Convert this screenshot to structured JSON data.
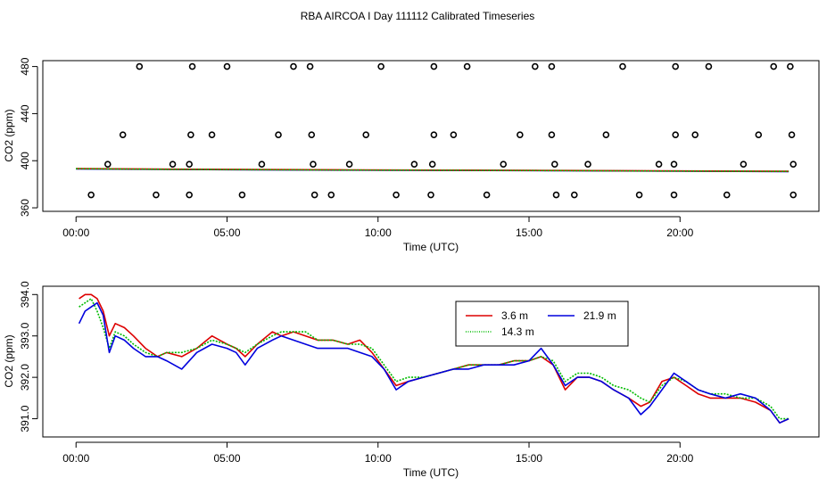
{
  "page_title": "RBA AIRCOA I  Day 111112  Calibrated Timeseries",
  "colors": {
    "red": "#dd0000",
    "green": "#00bb00",
    "blue": "#0000dd",
    "axis": "#000000"
  },
  "chart_data": [
    {
      "type": "scatter",
      "name": "top-panel",
      "xlabel": "Time (UTC)",
      "ylabel": "CO2 (ppm)",
      "xlim": [
        -1.1,
        24.6
      ],
      "ylim": [
        357,
        485
      ],
      "x_ticks": [
        {
          "v": 0,
          "label": "00:00"
        },
        {
          "v": 5,
          "label": "05:00"
        },
        {
          "v": 10,
          "label": "10:00"
        },
        {
          "v": 15,
          "label": "15:00"
        },
        {
          "v": 20,
          "label": "20:00"
        }
      ],
      "y_ticks": [
        {
          "v": 360,
          "label": "360"
        },
        {
          "v": 400,
          "label": "400"
        },
        {
          "v": 440,
          "label": "440"
        },
        {
          "v": 480,
          "label": "480"
        }
      ],
      "points_480": [
        2.1,
        3.85,
        5.0,
        7.2,
        7.75,
        10.1,
        11.85,
        12.95,
        15.2,
        15.75,
        18.1,
        19.85,
        20.95,
        23.1,
        23.65
      ],
      "points_422": [
        1.55,
        3.8,
        4.5,
        6.7,
        7.8,
        9.6,
        11.85,
        12.5,
        14.7,
        15.75,
        17.55,
        19.85,
        20.5,
        22.6,
        23.7
      ],
      "points_397": [
        1.05,
        3.2,
        3.75,
        6.15,
        7.85,
        9.05,
        11.2,
        11.8,
        14.15,
        15.85,
        16.95,
        19.3,
        19.8,
        22.1,
        23.75
      ],
      "points_371": [
        0.5,
        2.65,
        3.75,
        5.5,
        7.9,
        8.45,
        10.6,
        11.75,
        13.6,
        15.9,
        16.5,
        18.65,
        19.8,
        21.55,
        23.75
      ],
      "series": [
        {
          "name": "blue-line",
          "color": "blue",
          "x": [
            0,
            3,
            6,
            9,
            12,
            15,
            18,
            21,
            23.6
          ],
          "y": [
            393,
            392.6,
            392.2,
            392,
            391.8,
            391.6,
            391.3,
            391,
            390.8
          ]
        },
        {
          "name": "red-line",
          "color": "red",
          "x": [
            0,
            3,
            6,
            9,
            12,
            15,
            18,
            21,
            23.6
          ],
          "y": [
            393.3,
            392.8,
            392.5,
            392.2,
            392,
            391.8,
            391.5,
            391.2,
            391
          ]
        },
        {
          "name": "green-line",
          "color": "green",
          "x": [
            0,
            3,
            6,
            9,
            12,
            15,
            18,
            21,
            23.6
          ],
          "y": [
            393.2,
            392.7,
            392.4,
            392.1,
            391.9,
            391.7,
            391.4,
            391.1,
            390.9
          ]
        }
      ]
    },
    {
      "type": "line",
      "name": "bottom-panel",
      "xlabel": "Time (UTC)",
      "ylabel": "CO2 (ppm)",
      "xlim": [
        -1.1,
        24.6
      ],
      "ylim": [
        390.56,
        394.2
      ],
      "x_ticks": [
        {
          "v": 0,
          "label": "00:00"
        },
        {
          "v": 5,
          "label": "05:00"
        },
        {
          "v": 10,
          "label": "10:00"
        },
        {
          "v": 15,
          "label": "15:00"
        },
        {
          "v": 20,
          "label": "20:00"
        }
      ],
      "y_ticks": [
        {
          "v": 391.0,
          "label": "391.0"
        },
        {
          "v": 392.0,
          "label": "392.0"
        },
        {
          "v": 393.0,
          "label": "393.0"
        },
        {
          "v": 394.0,
          "label": "394.0"
        }
      ],
      "legend": [
        {
          "label": "3.6 m",
          "color": "red"
        },
        {
          "label": "21.9 m",
          "color": "blue"
        },
        {
          "label": "14.3 m",
          "color": "green"
        }
      ],
      "series": [
        {
          "name": "3.6 m",
          "color": "red",
          "x": [
            0.1,
            0.3,
            0.5,
            0.7,
            0.9,
            1.1,
            1.3,
            1.6,
            1.9,
            2.3,
            2.7,
            3.0,
            3.5,
            4.0,
            4.5,
            5.0,
            5.3,
            5.6,
            6.0,
            6.5,
            6.8,
            7.2,
            7.6,
            8.0,
            8.5,
            9.0,
            9.4,
            9.8,
            10.2,
            10.6,
            11.0,
            11.5,
            12.0,
            12.5,
            13.0,
            13.5,
            14.0,
            14.5,
            15.0,
            15.4,
            15.8,
            16.2,
            16.6,
            17.0,
            17.4,
            17.8,
            18.3,
            18.7,
            19.0,
            19.4,
            19.8,
            20.2,
            20.6,
            21.0,
            21.5,
            22.0,
            22.5,
            23.0,
            23.3,
            23.6
          ],
          "y": [
            393.9,
            394.0,
            394.0,
            393.9,
            393.6,
            393.0,
            393.3,
            393.2,
            393.0,
            392.7,
            392.5,
            392.6,
            392.5,
            392.7,
            393.0,
            392.8,
            392.7,
            392.5,
            392.8,
            393.1,
            393.0,
            393.1,
            393.0,
            392.9,
            392.9,
            392.8,
            392.9,
            392.6,
            392.2,
            391.8,
            391.9,
            392.0,
            392.1,
            392.2,
            392.3,
            392.3,
            392.3,
            392.4,
            392.4,
            392.5,
            392.3,
            391.7,
            392.0,
            392.0,
            391.9,
            391.7,
            391.5,
            391.3,
            391.4,
            391.9,
            392.0,
            391.8,
            391.6,
            391.5,
            391.5,
            391.5,
            391.4,
            391.2,
            390.9,
            391.0
          ]
        },
        {
          "name": "14.3 m",
          "color": "green",
          "x": [
            0.1,
            0.3,
            0.5,
            0.7,
            0.9,
            1.1,
            1.3,
            1.6,
            1.9,
            2.3,
            2.7,
            3.0,
            3.5,
            4.0,
            4.5,
            5.0,
            5.3,
            5.6,
            6.0,
            6.5,
            6.8,
            7.2,
            7.6,
            8.0,
            8.5,
            9.0,
            9.4,
            9.8,
            10.2,
            10.6,
            11.0,
            11.5,
            12.0,
            12.5,
            13.0,
            13.5,
            14.0,
            14.5,
            15.0,
            15.4,
            15.8,
            16.2,
            16.6,
            17.0,
            17.4,
            17.8,
            18.3,
            18.7,
            19.0,
            19.4,
            19.8,
            20.2,
            20.6,
            21.0,
            21.5,
            22.0,
            22.5,
            23.0,
            23.3,
            23.6
          ],
          "y": [
            393.7,
            393.8,
            393.9,
            393.6,
            393.2,
            392.7,
            393.1,
            393.0,
            392.8,
            392.6,
            392.5,
            392.6,
            392.6,
            392.7,
            392.9,
            392.8,
            392.7,
            392.6,
            392.8,
            393.0,
            393.1,
            393.1,
            393.1,
            392.9,
            392.9,
            392.8,
            392.8,
            392.7,
            392.3,
            391.9,
            392.0,
            392.0,
            392.1,
            392.2,
            392.3,
            392.3,
            392.3,
            392.4,
            392.4,
            392.5,
            392.4,
            391.9,
            392.1,
            392.1,
            392.0,
            391.8,
            391.7,
            391.5,
            391.4,
            391.8,
            392.0,
            391.9,
            391.7,
            391.6,
            391.6,
            391.5,
            391.5,
            391.3,
            391.0,
            391.0
          ]
        },
        {
          "name": "21.9 m",
          "color": "blue",
          "x": [
            0.1,
            0.3,
            0.5,
            0.7,
            0.9,
            1.1,
            1.3,
            1.6,
            1.9,
            2.3,
            2.7,
            3.0,
            3.5,
            4.0,
            4.5,
            5.0,
            5.3,
            5.6,
            6.0,
            6.5,
            6.8,
            7.2,
            7.6,
            8.0,
            8.5,
            9.0,
            9.4,
            9.8,
            10.2,
            10.6,
            11.0,
            11.5,
            12.0,
            12.5,
            13.0,
            13.5,
            14.0,
            14.5,
            15.0,
            15.4,
            15.8,
            16.2,
            16.6,
            17.0,
            17.4,
            17.8,
            18.3,
            18.7,
            19.0,
            19.4,
            19.8,
            20.2,
            20.6,
            21.0,
            21.5,
            22.0,
            22.5,
            23.0,
            23.3,
            23.6
          ],
          "y": [
            393.3,
            393.6,
            393.7,
            393.8,
            393.5,
            392.6,
            393.0,
            392.9,
            392.7,
            392.5,
            392.5,
            392.4,
            392.2,
            392.6,
            392.8,
            392.7,
            392.6,
            392.3,
            392.7,
            392.9,
            393.0,
            392.9,
            392.8,
            392.7,
            392.7,
            392.7,
            392.6,
            392.5,
            392.2,
            391.7,
            391.9,
            392.0,
            392.1,
            392.2,
            392.2,
            392.3,
            392.3,
            392.3,
            392.4,
            392.7,
            392.3,
            391.8,
            392.0,
            392.0,
            391.9,
            391.7,
            391.5,
            391.1,
            391.3,
            391.7,
            392.1,
            391.9,
            391.7,
            391.6,
            391.5,
            391.6,
            391.5,
            391.2,
            390.9,
            391.0
          ]
        }
      ]
    }
  ]
}
